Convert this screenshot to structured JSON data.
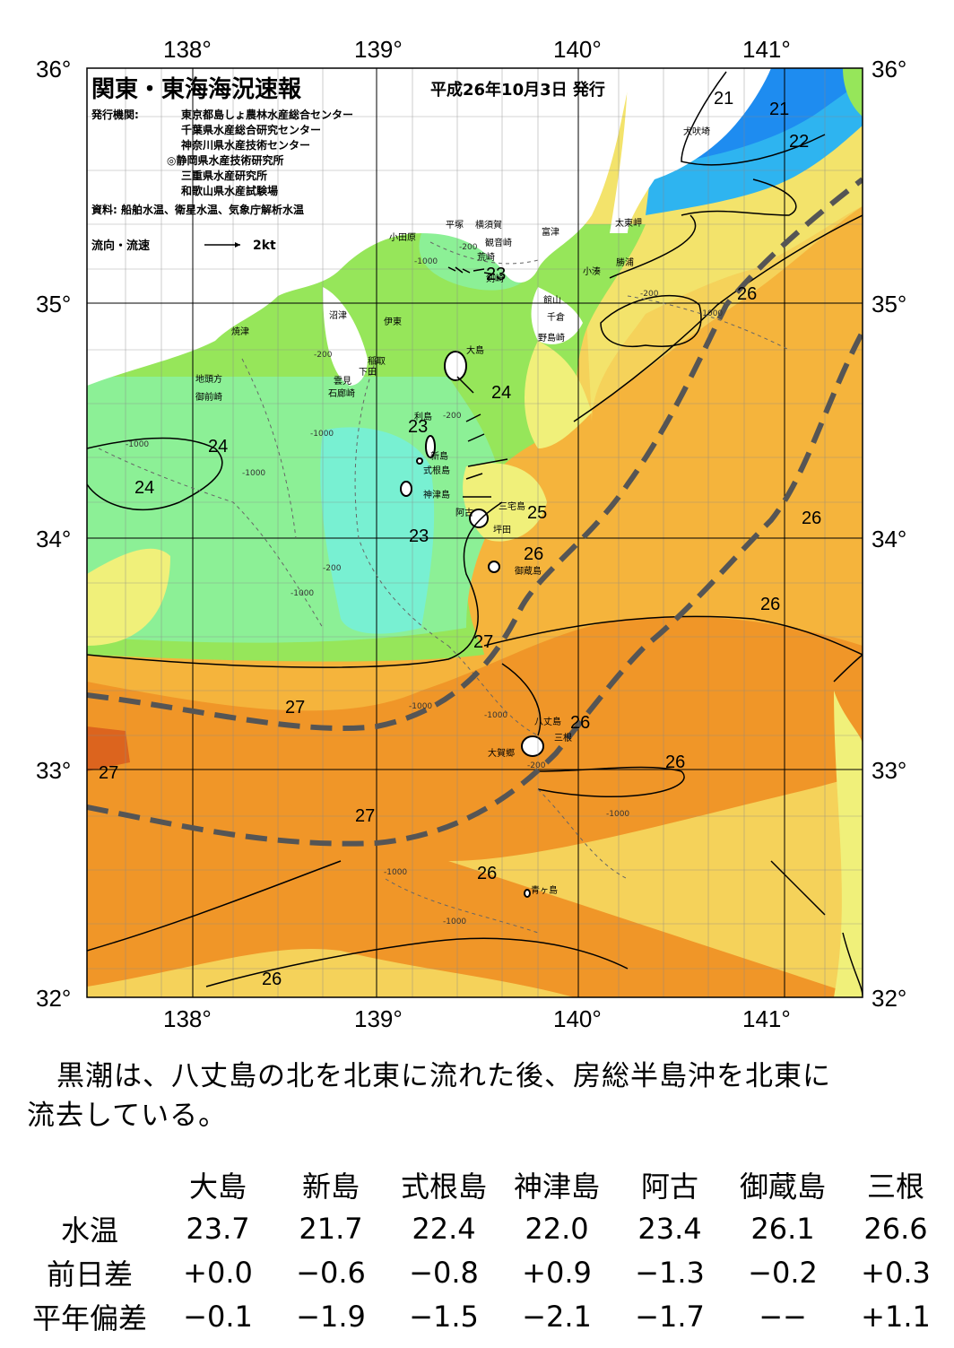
{
  "header": {
    "title": "関東・東海海況速報",
    "date": "平成26年10月3日 発行",
    "publisher_label": "発行機関:",
    "publishers": [
      "東京都島しょ農林水産総合センター",
      "千葉県水産総合研究センター",
      "神奈川県水産技術センター",
      "◎静岡県水産技術研究所",
      "三重県水産研究所",
      "和歌山県水産試験場"
    ],
    "source": "資料: 船舶水温、衛星水温、気象庁解析水温",
    "flow_legend": "流向・流速",
    "flow_scale": "2kt"
  },
  "axes": {
    "lon_labels": [
      "138°",
      "139°",
      "140°",
      "141°"
    ],
    "lat_labels": [
      "36°",
      "35°",
      "34°",
      "33°",
      "32°"
    ]
  },
  "colors": {
    "temp_21": "#1e8cf0",
    "temp_22": "#2eb4f0",
    "temp_23": "#78f0d2",
    "temp_23_5": "#8cf096",
    "temp_24": "#96e65a",
    "temp_25": "#f0f07a",
    "temp_25_5": "#f5d25a",
    "temp_26": "#f5b43c",
    "temp_27": "#f09628",
    "temp_28": "#dc641e",
    "kuroshio_axis": "#555555",
    "land": "#ffffff"
  },
  "place_names": [
    {
      "name": "犬吠埼"
    },
    {
      "name": "平塚"
    },
    {
      "name": "横須賀"
    },
    {
      "name": "観音崎"
    },
    {
      "name": "富津"
    },
    {
      "name": "太東岬"
    },
    {
      "name": "小田原"
    },
    {
      "name": "荒崎"
    },
    {
      "name": "剣崎"
    },
    {
      "name": "勝浦"
    },
    {
      "name": "小湊"
    },
    {
      "name": "館山"
    },
    {
      "name": "千倉"
    },
    {
      "name": "沼津"
    },
    {
      "name": "伊東"
    },
    {
      "name": "野島崎"
    },
    {
      "name": "焼津"
    },
    {
      "name": "大島"
    },
    {
      "name": "稲取"
    },
    {
      "name": "下田"
    },
    {
      "name": "雲見"
    },
    {
      "name": "石廊崎"
    },
    {
      "name": "地頭方"
    },
    {
      "name": "御前崎"
    },
    {
      "name": "利島"
    },
    {
      "name": "新島"
    },
    {
      "name": "式根島"
    },
    {
      "name": "神津島"
    },
    {
      "name": "三宅島"
    },
    {
      "name": "阿古"
    },
    {
      "name": "坪田"
    },
    {
      "name": "御蔵島"
    },
    {
      "name": "八丈島"
    },
    {
      "name": "三根"
    },
    {
      "name": "大賀郷"
    },
    {
      "name": "青ヶ島"
    }
  ],
  "isotherm_labels": [
    "21",
    "21",
    "22",
    "23",
    "26",
    "24",
    "23",
    "24",
    "24",
    "25",
    "23",
    "26",
    "26",
    "26",
    "27",
    "27",
    "26",
    "27",
    "26",
    "27",
    "26",
    "26"
  ],
  "depth_labels": [
    "-200",
    "-1000"
  ],
  "summary": {
    "line1": "黒潮は、八丈島の北を北東に流れた後、房総半島沖を北東に",
    "line2": "流去している。"
  },
  "table": {
    "stations": [
      "大島",
      "新島",
      "式根島",
      "神津島",
      "阿古",
      "御蔵島",
      "三根"
    ],
    "rows": [
      {
        "label": "水温",
        "values": [
          "23.7",
          "21.7",
          "22.4",
          "22.0",
          "23.4",
          "26.1",
          "26.6"
        ]
      },
      {
        "label": "前日差",
        "values": [
          "+0.0",
          "−0.6",
          "−0.8",
          "+0.9",
          "−1.3",
          "−0.2",
          "+0.3"
        ]
      },
      {
        "label": "平年偏差",
        "values": [
          "−0.1",
          "−1.9",
          "−1.5",
          "−2.1",
          "−1.7",
          "−−",
          "+1.1"
        ]
      }
    ]
  }
}
